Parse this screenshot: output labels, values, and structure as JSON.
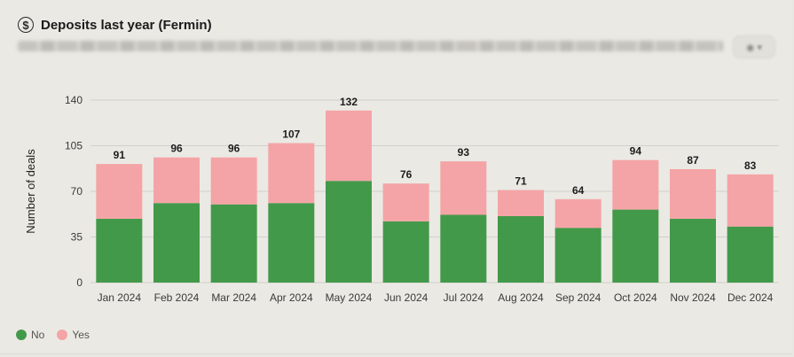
{
  "header": {
    "title": "Deposits last year (Fermin)",
    "icon": "dollar-circle-icon",
    "menu_icon": "eye-icon"
  },
  "colors": {
    "no": "#43994a",
    "yes": "#f4a4a6",
    "grid": "#d2d0ca"
  },
  "chart_data": {
    "type": "bar",
    "stacked": true,
    "title": "",
    "xlabel": "",
    "ylabel": "Number of deals",
    "ylim": [
      0,
      140
    ],
    "yticks": [
      0,
      35,
      70,
      105,
      140
    ],
    "grid": true,
    "legend_position": "bottom-left",
    "categories": [
      "Jan 2024",
      "Feb 2024",
      "Mar 2024",
      "Apr 2024",
      "May 2024",
      "Jun 2024",
      "Jul 2024",
      "Aug 2024",
      "Sep 2024",
      "Oct 2024",
      "Nov 2024",
      "Dec 2024"
    ],
    "series": [
      {
        "name": "No",
        "values": [
          49,
          61,
          60,
          61,
          78,
          47,
          52,
          51,
          42,
          56,
          49,
          43
        ]
      },
      {
        "name": "Yes",
        "values": [
          42,
          35,
          36,
          46,
          54,
          29,
          41,
          20,
          22,
          38,
          38,
          40
        ]
      }
    ],
    "totals": [
      91,
      96,
      96,
      107,
      132,
      76,
      93,
      71,
      64,
      94,
      87,
      83
    ]
  }
}
